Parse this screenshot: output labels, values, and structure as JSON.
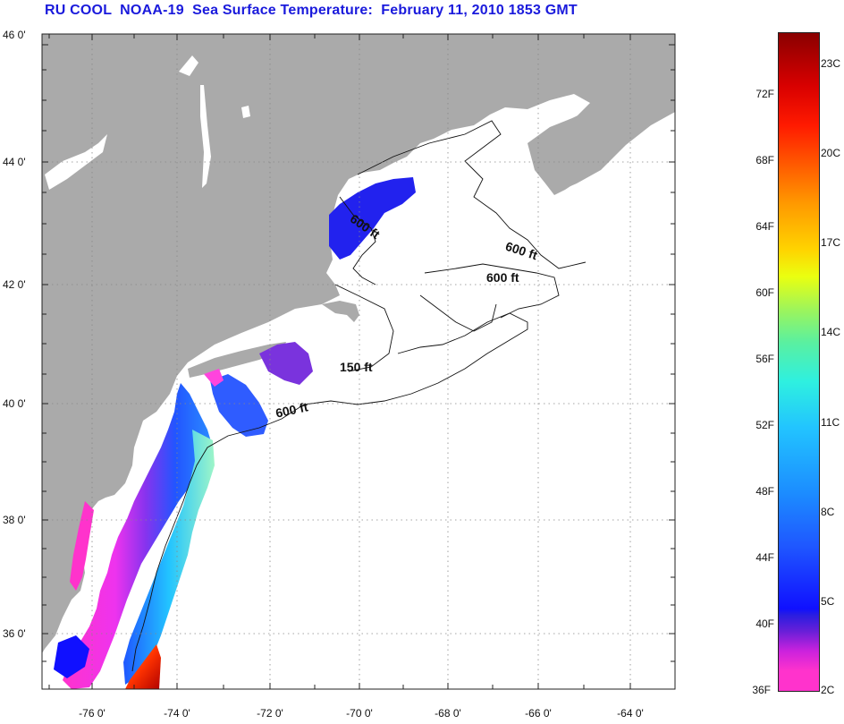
{
  "title": "RU COOL  NOAA-19  Sea Surface Temperature:  February 11, 2010 1853 GMT",
  "axes": {
    "lat_labels": [
      "46 0'",
      "44 0'",
      "42 0'",
      "40 0'",
      "38 0'",
      "36 0'"
    ],
    "lon_labels": [
      "-76 0'",
      "-74 0'",
      "-72 0'",
      "-70 0'",
      "-68 0'",
      "-66 0'",
      "-64 0'"
    ]
  },
  "contour_labels": [
    {
      "text": "600 ft",
      "name": "contour-label-gulf-of-maine"
    },
    {
      "text": "600 ft",
      "name": "contour-label-northeast-channel"
    },
    {
      "text": "600 ft",
      "name": "contour-label-georges-bank"
    },
    {
      "text": "150 ft",
      "name": "contour-label-nantucket-shoals"
    },
    {
      "text": "600 ft",
      "name": "contour-label-shelf-break"
    }
  ],
  "colorbar": {
    "fahrenheit_labels": [
      "72F",
      "68F",
      "64F",
      "60F",
      "56F",
      "52F",
      "48F",
      "44F",
      "40F",
      "36F"
    ],
    "celsius_labels": [
      "23C",
      "20C",
      "17C",
      "14C",
      "11C",
      "8C",
      "5C",
      "2C"
    ]
  },
  "colors": {
    "land": "#aaaaaa",
    "ocean": "#ffffff",
    "title": "#1a1adc"
  }
}
